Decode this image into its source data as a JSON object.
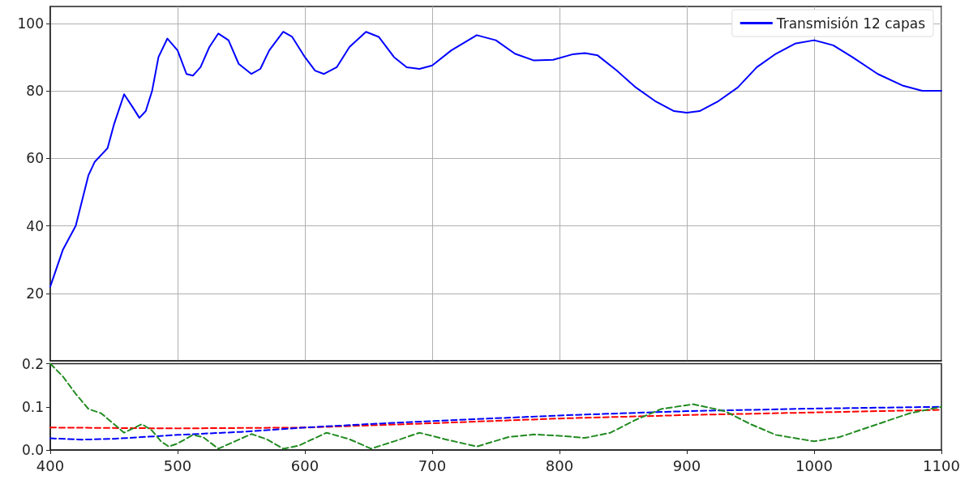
{
  "chart_data": [
    {
      "type": "line",
      "xlim": [
        400,
        1100
      ],
      "xticks": [
        400,
        500,
        600,
        700,
        800,
        900,
        1000,
        1100
      ],
      "ylim": [
        0,
        105
      ],
      "yticks": [
        20,
        40,
        60,
        80,
        100
      ],
      "tick_labels": "y",
      "grid": true,
      "legend": "top right",
      "marker": "none",
      "line_style": "solid",
      "series": [
        {
          "name": "Transmisión 12 capas",
          "color": "#0000ff",
          "x": [
            400,
            410,
            420,
            430,
            435,
            440,
            445,
            450,
            458,
            465,
            470,
            475,
            480,
            485,
            492,
            500,
            507,
            512,
            518,
            525,
            532,
            540,
            548,
            558,
            565,
            572,
            583,
            590,
            600,
            608,
            615,
            625,
            635,
            648,
            658,
            670,
            680,
            690,
            700,
            715,
            735,
            750,
            765,
            780,
            795,
            810,
            820,
            830,
            845,
            860,
            875,
            890,
            900,
            910,
            925,
            940,
            955,
            970,
            985,
            1000,
            1015,
            1030,
            1050,
            1070,
            1085,
            1100
          ],
          "values": [
            22,
            33,
            40,
            55,
            59,
            61,
            63,
            70,
            79,
            75,
            72,
            74,
            80,
            90,
            95.5,
            92,
            85,
            84.5,
            87,
            93,
            97,
            95,
            88,
            85,
            86.5,
            92,
            97.5,
            96,
            90,
            86,
            85,
            87,
            93,
            97.5,
            96,
            90,
            87,
            86.5,
            87.5,
            92,
            96.5,
            95,
            91,
            89,
            89.2,
            90.8,
            91.2,
            90.5,
            86,
            81,
            77,
            74,
            73.5,
            74,
            77,
            81,
            87,
            91,
            94,
            95,
            93.5,
            90,
            85,
            81.5,
            80,
            80
          ]
        }
      ]
    },
    {
      "type": "line",
      "xlim": [
        400,
        1100
      ],
      "xticks": [
        400,
        500,
        600,
        700,
        800,
        900,
        1000,
        1100
      ],
      "ylim": [
        0,
        0.2
      ],
      "yticks": [
        {
          "value": 0,
          "label": "0.0"
        },
        {
          "value": 0.1,
          "label": "0.1"
        },
        {
          "value": 0.2,
          "label": "0.2"
        }
      ],
      "grid": false,
      "legend": false,
      "marker": "none",
      "line_style": "dashed",
      "series": [
        {
          "color": "#ff0000",
          "x": [
            400,
            500,
            600,
            700,
            800,
            900,
            1000,
            1100
          ],
          "values": [
            0.052,
            0.05,
            0.052,
            0.062,
            0.073,
            0.081,
            0.087,
            0.093
          ]
        },
        {
          "color": "#0000ff",
          "x": [
            400,
            425,
            450,
            500,
            550,
            600,
            650,
            700,
            800,
            900,
            1000,
            1100
          ],
          "values": [
            0.027,
            0.024,
            0.026,
            0.035,
            0.042,
            0.052,
            0.06,
            0.067,
            0.08,
            0.09,
            0.096,
            0.1
          ]
        },
        {
          "color": "#228b22",
          "x": [
            400,
            410,
            420,
            430,
            440,
            450,
            458,
            465,
            472,
            480,
            487,
            493,
            500,
            512,
            520,
            532,
            545,
            558,
            570,
            583,
            595,
            617,
            635,
            652,
            670,
            690,
            710,
            735,
            760,
            780,
            800,
            820,
            840,
            860,
            880,
            905,
            930,
            950,
            970,
            1000,
            1020,
            1050,
            1075,
            1100
          ],
          "values": [
            0.2,
            0.17,
            0.13,
            0.095,
            0.085,
            0.06,
            0.04,
            0.05,
            0.06,
            0.045,
            0.02,
            0.008,
            0.015,
            0.035,
            0.03,
            0.003,
            0.02,
            0.037,
            0.025,
            0.003,
            0.01,
            0.04,
            0.025,
            0.003,
            0.02,
            0.04,
            0.025,
            0.008,
            0.03,
            0.036,
            0.033,
            0.028,
            0.04,
            0.07,
            0.095,
            0.106,
            0.09,
            0.06,
            0.035,
            0.02,
            0.03,
            0.06,
            0.085,
            0.1
          ]
        }
      ]
    }
  ]
}
